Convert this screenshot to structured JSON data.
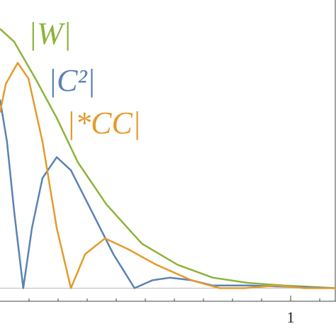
{
  "chart_data": {
    "type": "line",
    "xlim": [
      0,
      1.156
    ],
    "ylim": [
      -0.05,
      1.1
    ],
    "xticks": [
      1
    ],
    "xminorticks": [
      0.1,
      0.2,
      0.3,
      0.4,
      0.5,
      0.6,
      0.7,
      0.8,
      0.9,
      1.1
    ],
    "zero_line": true,
    "series": [
      {
        "name": "|W|",
        "color": "#8db33a",
        "x": [
          0,
          0.049,
          0.122,
          0.195,
          0.268,
          0.366,
          0.488,
          0.61,
          0.732,
          0.854,
          0.976,
          1.156
        ],
        "values": [
          0.99,
          0.94,
          0.8,
          0.65,
          0.48,
          0.32,
          0.17,
          0.09,
          0.04,
          0.02,
          0.01,
          0
        ]
      },
      {
        "name": "|C²|",
        "color": "#5a82b4",
        "x": [
          0,
          0.024,
          0.049,
          0.08,
          0.11,
          0.146,
          0.195,
          0.244,
          0.317,
          0.39,
          0.463,
          0.524,
          0.585,
          0.659,
          0.732,
          0.854,
          1.156
        ],
        "values": [
          0.72,
          0.56,
          0.29,
          0,
          0.23,
          0.42,
          0.5,
          0.45,
          0.29,
          0.13,
          0,
          0.03,
          0.04,
          0.03,
          0.01,
          0.01,
          0
        ]
      },
      {
        "name": "|*CC|",
        "color": "#e39b2d",
        "x": [
          0,
          0.02,
          0.061,
          0.098,
          0.146,
          0.195,
          0.244,
          0.293,
          0.361,
          0.439,
          0.537,
          0.659,
          0.756,
          0.841,
          0.951,
          1.049,
          1.156
        ],
        "values": [
          0.67,
          0.78,
          0.86,
          0.8,
          0.56,
          0.23,
          0,
          0.13,
          0.19,
          0.15,
          0.09,
          0.03,
          0,
          0,
          0.01,
          0,
          0
        ]
      }
    ]
  }
}
